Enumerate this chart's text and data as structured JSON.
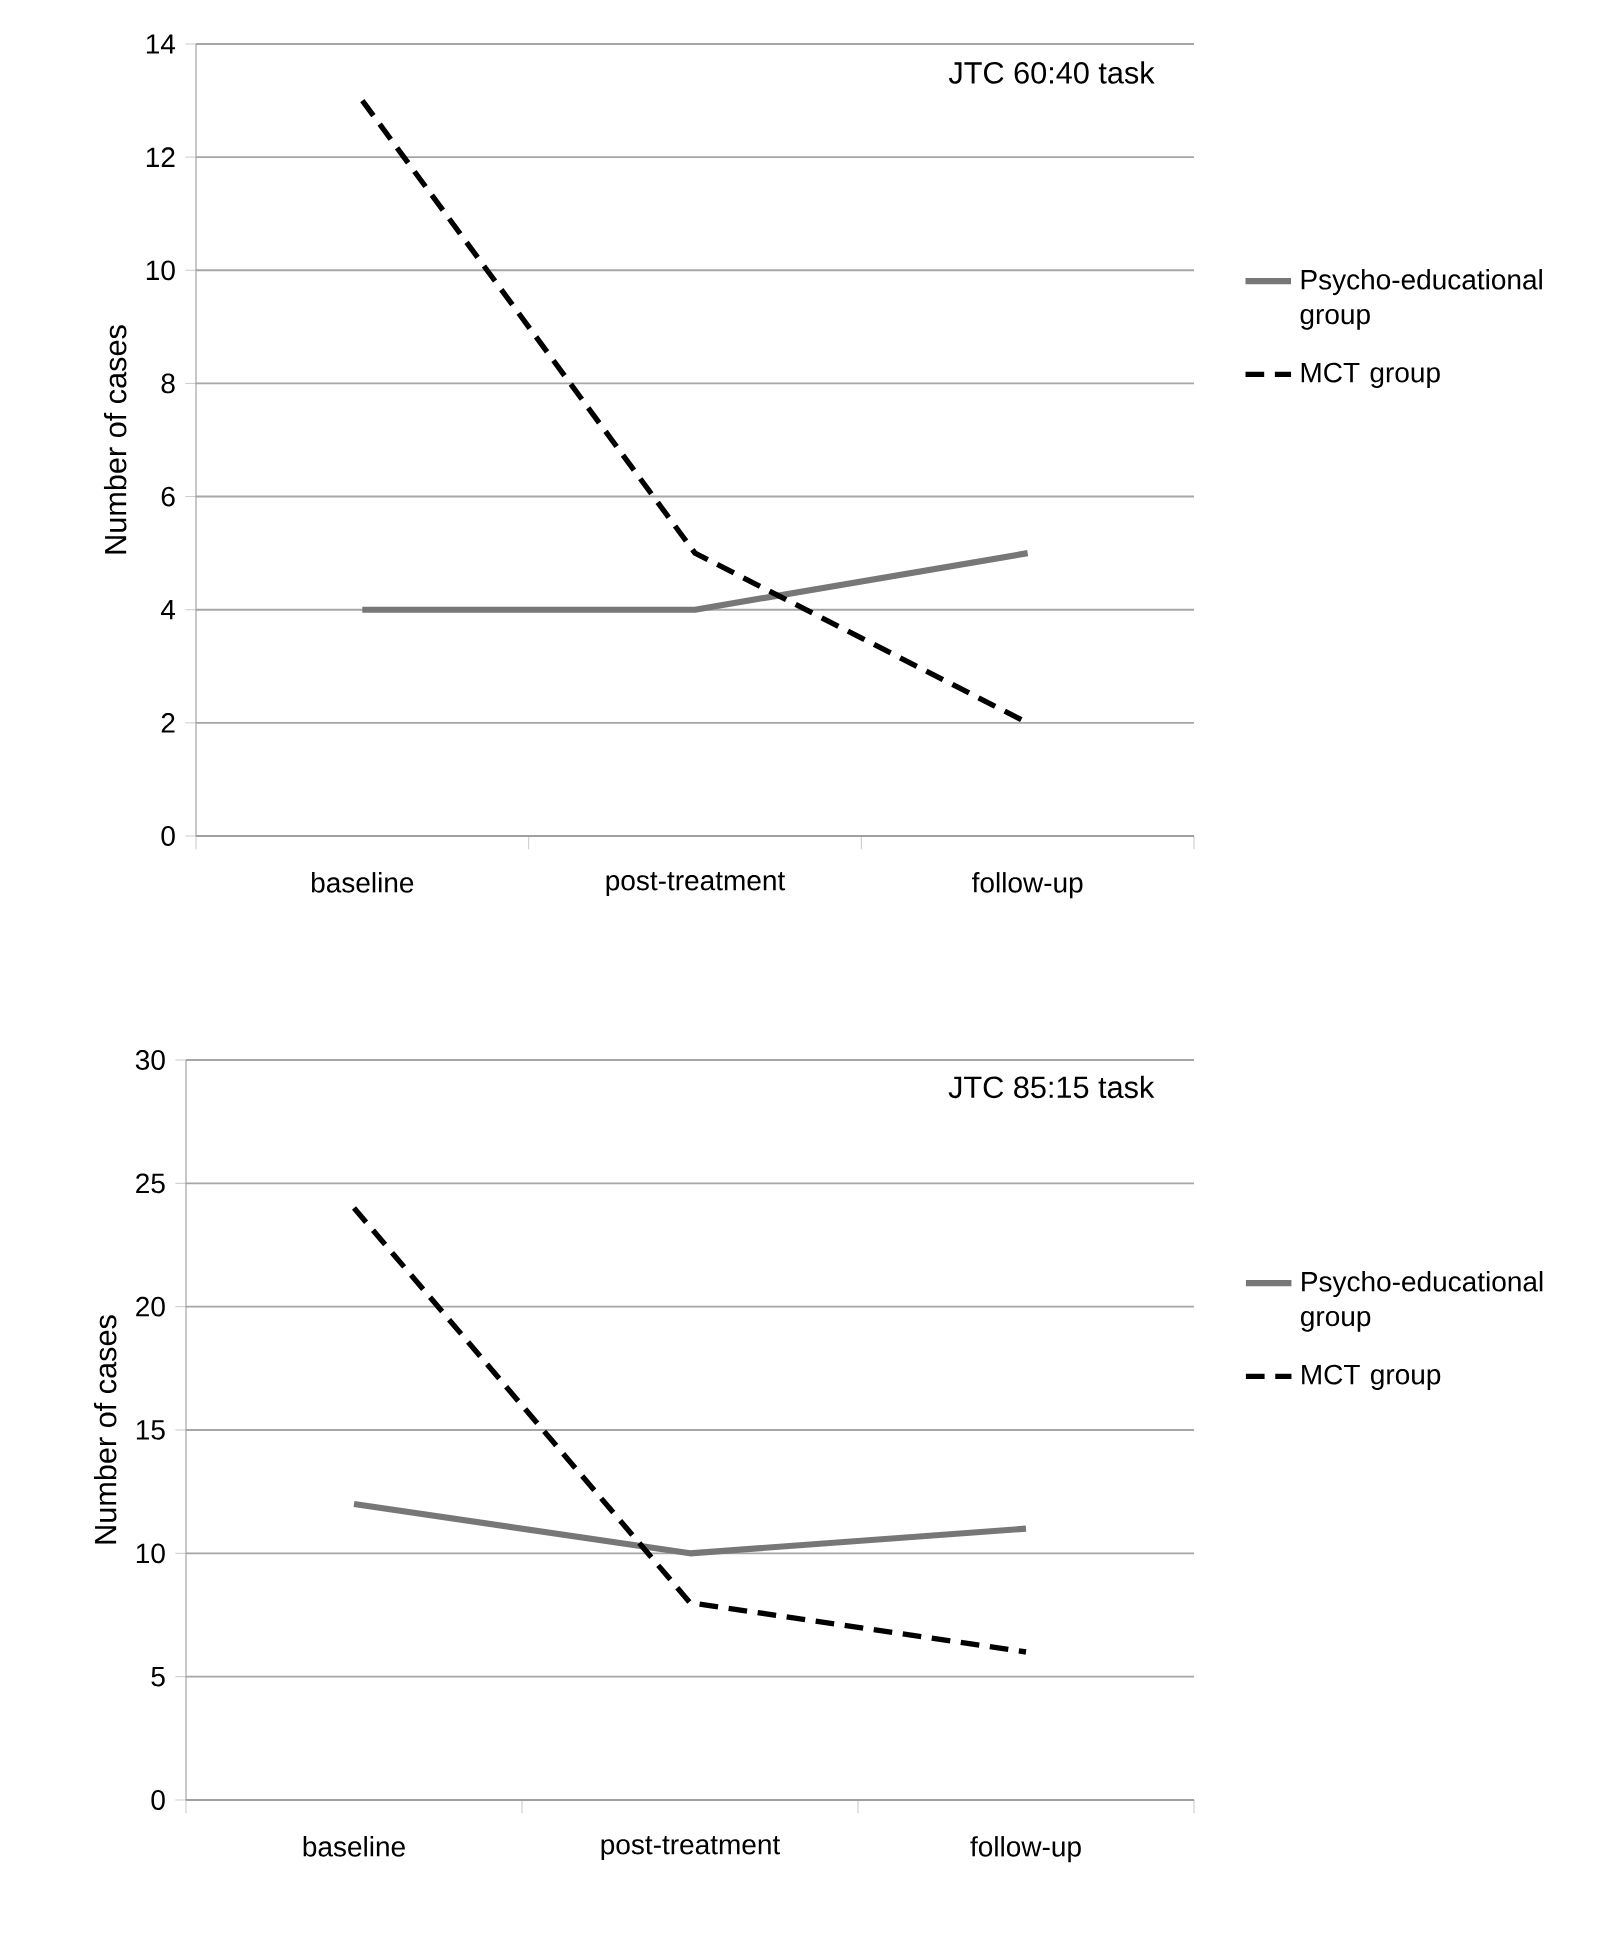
{
  "chart_data": [
    {
      "type": "line",
      "title": "JTC 60:40 task",
      "ylabel": "Number of cases",
      "categories": [
        "baseline",
        "post-treatment",
        "follow-up"
      ],
      "series": [
        {
          "name": "Psycho-educational group",
          "color": "#777777",
          "line_style": "solid",
          "values": [
            4,
            4,
            5
          ]
        },
        {
          "name": "MCT group",
          "color": "#000000",
          "line_style": "dashed",
          "values": [
            13,
            5,
            2
          ]
        }
      ],
      "ylim": [
        0,
        14
      ],
      "yticks": [
        0,
        2,
        4,
        6,
        8,
        10,
        12,
        14
      ],
      "grid": "y",
      "legend": "right"
    },
    {
      "type": "line",
      "title": "JTC 85:15 task",
      "ylabel": "Number of cases",
      "categories": [
        "baseline",
        "post-treatment",
        "follow-up"
      ],
      "series": [
        {
          "name": "Psycho-educational group",
          "color": "#777777",
          "line_style": "solid",
          "values": [
            12,
            10,
            11
          ]
        },
        {
          "name": "MCT group",
          "color": "#000000",
          "line_style": "dashed",
          "values": [
            24,
            8,
            6
          ]
        }
      ],
      "ylim": [
        0,
        30
      ],
      "yticks": [
        0,
        5,
        10,
        15,
        20,
        25,
        30
      ],
      "grid": "y",
      "legend": "right"
    }
  ]
}
